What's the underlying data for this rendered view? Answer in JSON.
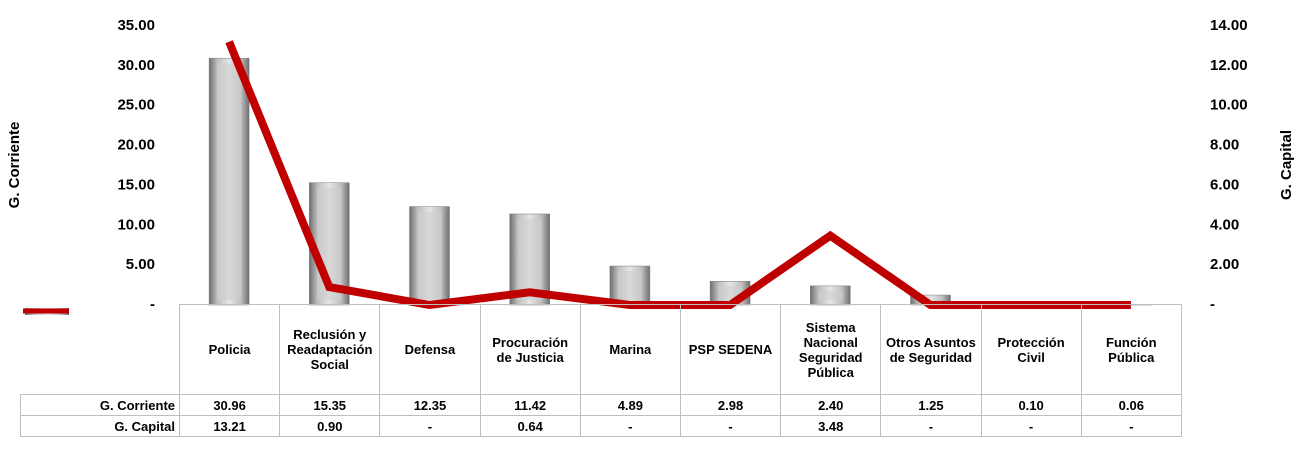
{
  "chart_data": {
    "type": "bar_line",
    "y_label": "G. Corriente",
    "y2_label": "G. Capital",
    "categories": [
      "Policia",
      "Reclusión y Readaptación Social",
      "Defensa",
      "Procuración de Justicia",
      "Marina",
      "PSP SEDENA",
      "Sistema Nacional Seguridad Pública",
      "Otros Asuntos de Seguridad",
      "Protección Civil",
      "Función Pública"
    ],
    "series": [
      {
        "name": "G. Corriente",
        "type": "bar",
        "color": "#a6a6a6",
        "values": [
          30.96,
          15.35,
          12.35,
          11.42,
          4.89,
          2.98,
          2.4,
          1.25,
          0.1,
          0.06
        ],
        "value_labels": [
          "30.96",
          "15.35",
          "12.35",
          "11.42",
          "4.89",
          "2.98",
          "2.40",
          "1.25",
          "0.10",
          "0.06"
        ]
      },
      {
        "name": "G. Capital",
        "type": "line",
        "axis": "y2",
        "color": "#c00000",
        "values": [
          13.21,
          0.9,
          0,
          0.64,
          0,
          0,
          3.48,
          0,
          0,
          0
        ],
        "value_labels": [
          "13.21",
          "0.90",
          "-",
          "0.64",
          "-",
          "-",
          "3.48",
          "-",
          "-",
          "-"
        ]
      }
    ],
    "ylim": [
      0,
      35
    ],
    "yticks": [
      {
        "value": 0,
        "label": "-"
      },
      {
        "value": 5,
        "label": "5.00"
      },
      {
        "value": 10,
        "label": "10.00"
      },
      {
        "value": 15,
        "label": "15.00"
      },
      {
        "value": 20,
        "label": "20.00"
      },
      {
        "value": 25,
        "label": "25.00"
      },
      {
        "value": 30,
        "label": "30.00"
      },
      {
        "value": 35,
        "label": "35.00"
      }
    ],
    "y2lim": [
      0,
      14
    ],
    "y2ticks": [
      {
        "value": 0,
        "label": "-"
      },
      {
        "value": 2,
        "label": "2.00"
      },
      {
        "value": 4,
        "label": "4.00"
      },
      {
        "value": 6,
        "label": "6.00"
      },
      {
        "value": 8,
        "label": "8.00"
      },
      {
        "value": 10,
        "label": "10.00"
      },
      {
        "value": 12,
        "label": "12.00"
      },
      {
        "value": 14,
        "label": "14.00"
      }
    ]
  }
}
